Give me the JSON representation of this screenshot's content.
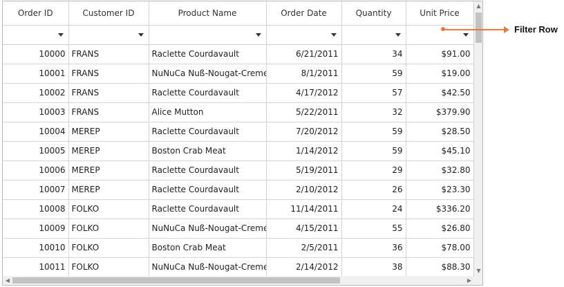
{
  "columns": [
    "Order ID",
    "Customer ID",
    "Product Name",
    "Order Date",
    "Quantity",
    "Unit Price"
  ],
  "rows": [
    [
      "10000",
      "FRANS",
      "Raclette Courdavault",
      "6/21/2011",
      "34",
      "$91.00"
    ],
    [
      "10001",
      "FRANS",
      "NuNuCa Nuß-Nougat-Creme",
      "8/1/2011",
      "59",
      "$19.00"
    ],
    [
      "10002",
      "FRANS",
      "Raclette Courdavault",
      "4/17/2012",
      "57",
      "$42.50"
    ],
    [
      "10003",
      "FRANS",
      "Alice Mutton",
      "5/22/2011",
      "32",
      "$379.90"
    ],
    [
      "10004",
      "MEREP",
      "Raclette Courdavault",
      "7/20/2012",
      "59",
      "$28.50"
    ],
    [
      "10005",
      "MEREP",
      "Boston Crab Meat",
      "1/14/2012",
      "59",
      "$45.10"
    ],
    [
      "10006",
      "MEREP",
      "Raclette Courdavault",
      "5/19/2011",
      "29",
      "$32.80"
    ],
    [
      "10007",
      "MEREP",
      "Raclette Courdavault",
      "2/10/2012",
      "26",
      "$23.30"
    ],
    [
      "10008",
      "FOLKO",
      "Raclette Courdavault",
      "11/14/2011",
      "24",
      "$336.20"
    ],
    [
      "10009",
      "FOLKO",
      "NuNuCa Nuß-Nougat-Creme",
      "4/15/2011",
      "55",
      "$26.80"
    ],
    [
      "10010",
      "FOLKO",
      "Boston Crab Meat",
      "2/5/2011",
      "36",
      "$78.00"
    ],
    [
      "10011",
      "FOLKO",
      "NuNuCa Nuß-Nougat-Creme",
      "2/14/2012",
      "38",
      "$88.30"
    ]
  ],
  "annotation": {
    "label": "Filter Row",
    "color": "#ec7a3a"
  },
  "icons": {
    "filter_dropdown": "chevron-down-icon",
    "scroll_up": "arrow-up-icon",
    "scroll_down": "arrow-down-icon",
    "scroll_left": "arrow-left-icon",
    "scroll_right": "arrow-right-icon"
  }
}
